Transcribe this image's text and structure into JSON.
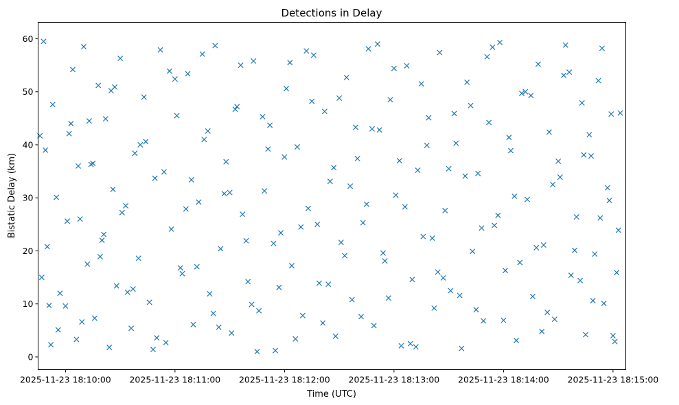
{
  "chart_data": {
    "type": "scatter",
    "title": "Detections in Delay",
    "xlabel": "Time (UTC)",
    "ylabel": "Bistatic Delay (km)",
    "x_axis_type": "datetime",
    "xlim": [
      "2025-11-23 18:09:45",
      "2025-11-23 18:15:07"
    ],
    "ylim": [
      -2.4,
      63.1
    ],
    "x_ticks": [
      "2025-11-23 18:10:00",
      "2025-11-23 18:11:00",
      "2025-11-23 18:12:00",
      "2025-11-23 18:13:00",
      "2025-11-23 18:14:00",
      "2025-11-23 18:15:00"
    ],
    "y_ticks": [
      0,
      10,
      20,
      30,
      40,
      50,
      60
    ],
    "grid": false,
    "legend": "none",
    "marker": "x",
    "marker_color": "#1f77b4",
    "series": [
      {
        "x": [
          "2025-11-23 18:09:47",
          "2025-11-23 18:09:48",
          "2025-11-23 18:09:49",
          "2025-11-23 18:09:50",
          "2025-11-23 18:09:52",
          "2025-11-23 18:09:53",
          "2025-11-23 18:09:55",
          "2025-11-23 18:09:57",
          "2025-11-23 18:10:00",
          "2025-11-23 18:10:02",
          "2025-11-23 18:10:04",
          "2025-11-23 18:10:06",
          "2025-11-23 18:10:08",
          "2025-11-23 18:10:10",
          "2025-11-23 18:10:12",
          "2025-11-23 18:10:14",
          "2025-11-23 18:10:16",
          "2025-11-23 18:10:18",
          "2025-11-23 18:10:20",
          "2025-11-23 18:10:22",
          "2025-11-23 18:10:24",
          "2025-11-23 18:10:26",
          "2025-11-23 18:10:28",
          "2025-11-23 18:10:30",
          "2025-11-23 18:10:33",
          "2025-11-23 18:10:36",
          "2025-11-23 18:10:38",
          "2025-11-23 18:10:40",
          "2025-11-23 18:10:43",
          "2025-11-23 18:10:46",
          "2025-11-23 18:10:49",
          "2025-11-23 18:10:52",
          "2025-11-23 18:10:55",
          "2025-11-23 18:10:58",
          "2025-11-23 18:11:01",
          "2025-11-23 18:11:04",
          "2025-11-23 18:11:07",
          "2025-11-23 18:11:10",
          "2025-11-23 18:11:13",
          "2025-11-23 18:11:16",
          "2025-11-23 18:11:19",
          "2025-11-23 18:11:22",
          "2025-11-23 18:11:25",
          "2025-11-23 18:11:28",
          "2025-11-23 18:11:31",
          "2025-11-23 18:11:34",
          "2025-11-23 18:11:37",
          "2025-11-23 18:11:40",
          "2025-11-23 18:11:43",
          "2025-11-23 18:11:46",
          "2025-11-23 18:11:49",
          "2025-11-23 18:11:52",
          "2025-11-23 18:11:55",
          "2025-11-23 18:11:58",
          "2025-11-23 18:12:01",
          "2025-11-23 18:12:04",
          "2025-11-23 18:12:07",
          "2025-11-23 18:12:10",
          "2025-11-23 18:12:13",
          "2025-11-23 18:12:16",
          "2025-11-23 18:12:19",
          "2025-11-23 18:12:22",
          "2025-11-23 18:12:25",
          "2025-11-23 18:12:28",
          "2025-11-23 18:12:31",
          "2025-11-23 18:12:34",
          "2025-11-23 18:12:37",
          "2025-11-23 18:12:40",
          "2025-11-23 18:12:43",
          "2025-11-23 18:12:46",
          "2025-11-23 18:12:49",
          "2025-11-23 18:12:52",
          "2025-11-23 18:12:55",
          "2025-11-23 18:12:58",
          "2025-11-23 18:13:01",
          "2025-11-23 18:13:04",
          "2025-11-23 18:13:07",
          "2025-11-23 18:13:10",
          "2025-11-23 18:13:13",
          "2025-11-23 18:13:16",
          "2025-11-23 18:13:19",
          "2025-11-23 18:13:22",
          "2025-11-23 18:13:25",
          "2025-11-23 18:13:28",
          "2025-11-23 18:13:31",
          "2025-11-23 18:13:34",
          "2025-11-23 18:13:37",
          "2025-11-23 18:13:40",
          "2025-11-23 18:13:43",
          "2025-11-23 18:13:46",
          "2025-11-23 18:13:49",
          "2025-11-23 18:13:52",
          "2025-11-23 18:13:55",
          "2025-11-23 18:13:58",
          "2025-11-23 18:14:01",
          "2025-11-23 18:14:04",
          "2025-11-23 18:14:07",
          "2025-11-23 18:14:10",
          "2025-11-23 18:14:13",
          "2025-11-23 18:14:16",
          "2025-11-23 18:14:19",
          "2025-11-23 18:14:22",
          "2025-11-23 18:14:25",
          "2025-11-23 18:14:28",
          "2025-11-23 18:14:31",
          "2025-11-23 18:14:34",
          "2025-11-23 18:14:37",
          "2025-11-23 18:14:40",
          "2025-11-23 18:14:43",
          "2025-11-23 18:14:45",
          "2025-11-23 18:14:48",
          "2025-11-23 18:14:50",
          "2025-11-23 18:14:52",
          "2025-11-23 18:14:55",
          "2025-11-23 18:14:57",
          "2025-11-23 18:14:59",
          "2025-11-23 18:15:01",
          "2025-11-23 18:15:03",
          "2025-11-23 18:09:46",
          "2025-11-23 18:09:51",
          "2025-11-23 18:09:56",
          "2025-11-23 18:10:01",
          "2025-11-23 18:10:07",
          "2025-11-23 18:10:13",
          "2025-11-23 18:10:19",
          "2025-11-23 18:10:25",
          "2025-11-23 18:10:31",
          "2025-11-23 18:10:37",
          "2025-11-23 18:10:44",
          "2025-11-23 18:10:50",
          "2025-11-23 18:10:57",
          "2025-11-23 18:11:03",
          "2025-11-23 18:11:09",
          "2025-11-23 18:11:15",
          "2025-11-23 18:11:21",
          "2025-11-23 18:11:27",
          "2025-11-23 18:11:33",
          "2025-11-23 18:11:39",
          "2025-11-23 18:11:45",
          "2025-11-23 18:11:51",
          "2025-11-23 18:11:57",
          "2025-11-23 18:12:03",
          "2025-11-23 18:12:09",
          "2025-11-23 18:12:15",
          "2025-11-23 18:12:21",
          "2025-11-23 18:12:27",
          "2025-11-23 18:12:33",
          "2025-11-23 18:12:39",
          "2025-11-23 18:12:45",
          "2025-11-23 18:12:51",
          "2025-11-23 18:12:57",
          "2025-11-23 18:13:03",
          "2025-11-23 18:13:09",
          "2025-11-23 18:13:15",
          "2025-11-23 18:13:21",
          "2025-11-23 18:13:27",
          "2025-11-23 18:13:33",
          "2025-11-23 18:13:39",
          "2025-11-23 18:13:45",
          "2025-11-23 18:13:51",
          "2025-11-23 18:13:57",
          "2025-11-23 18:14:03",
          "2025-11-23 18:14:09",
          "2025-11-23 18:14:15",
          "2025-11-23 18:14:21",
          "2025-11-23 18:14:27",
          "2025-11-23 18:14:33",
          "2025-11-23 18:14:39",
          "2025-11-23 18:14:44",
          "2025-11-23 18:14:49",
          "2025-11-23 18:14:54",
          "2025-11-23 18:14:58",
          "2025-11-23 18:15:02",
          "2025-11-23 18:10:03",
          "2025-11-23 18:10:09",
          "2025-11-23 18:10:15",
          "2025-11-23 18:10:21",
          "2025-11-23 18:10:27",
          "2025-11-23 18:10:34",
          "2025-11-23 18:10:41",
          "2025-11-23 18:10:48",
          "2025-11-23 18:10:54",
          "2025-11-23 18:11:00",
          "2025-11-23 18:11:06",
          "2025-11-23 18:11:12",
          "2025-11-23 18:11:18",
          "2025-11-23 18:11:24",
          "2025-11-23 18:11:30",
          "2025-11-23 18:11:36",
          "2025-11-23 18:11:42",
          "2025-11-23 18:11:48",
          "2025-11-23 18:11:54",
          "2025-11-23 18:12:00",
          "2025-11-23 18:12:06",
          "2025-11-23 18:12:12",
          "2025-11-23 18:12:18",
          "2025-11-23 18:12:24",
          "2025-11-23 18:12:30",
          "2025-11-23 18:12:36",
          "2025-11-23 18:12:42",
          "2025-11-23 18:12:48",
          "2025-11-23 18:12:54",
          "2025-11-23 18:13:00",
          "2025-11-23 18:13:06",
          "2025-11-23 18:13:12",
          "2025-11-23 18:13:18",
          "2025-11-23 18:13:24",
          "2025-11-23 18:13:30",
          "2025-11-23 18:13:36",
          "2025-11-23 18:13:42",
          "2025-11-23 18:13:48",
          "2025-11-23 18:13:54",
          "2025-11-23 18:14:00",
          "2025-11-23 18:14:06",
          "2025-11-23 18:14:12",
          "2025-11-23 18:14:18",
          "2025-11-23 18:14:24",
          "2025-11-23 18:14:30",
          "2025-11-23 18:14:36",
          "2025-11-23 18:14:42",
          "2025-11-23 18:14:47",
          "2025-11-23 18:14:53",
          "2025-11-23 18:15:00",
          "2025-11-23 18:15:04"
        ],
        "y": [
          15.0,
          59.5,
          39.0,
          20.8,
          2.3,
          47.6,
          30.1,
          12.0,
          9.6,
          42.1,
          54.2,
          3.3,
          26.0,
          58.5,
          17.5,
          36.3,
          7.3,
          51.2,
          22.0,
          44.9,
          1.8,
          31.6,
          13.4,
          56.3,
          28.5,
          5.4,
          38.4,
          18.6,
          49.0,
          10.3,
          33.7,
          57.9,
          2.7,
          24.1,
          45.5,
          15.7,
          53.4,
          6.1,
          29.2,
          41.0,
          11.9,
          58.7,
          20.4,
          36.8,
          4.5,
          47.2,
          26.9,
          14.2,
          55.8,
          8.7,
          31.3,
          43.7,
          1.2,
          23.4,
          50.6,
          17.2,
          39.6,
          7.8,
          28.0,
          56.9,
          13.9,
          46.3,
          33.1,
          3.9,
          21.6,
          52.7,
          10.8,
          37.4,
          25.3,
          58.1,
          5.9,
          42.8,
          18.1,
          48.5,
          30.5,
          2.1,
          54.9,
          14.6,
          35.2,
          22.7,
          45.1,
          9.2,
          57.4,
          27.6,
          12.5,
          40.3,
          1.6,
          51.8,
          19.9,
          34.6,
          6.8,
          44.2,
          24.8,
          59.3,
          16.3,
          38.9,
          3.1,
          49.7,
          29.7,
          11.4,
          55.2,
          21.1,
          42.4,
          7.1,
          33.9,
          58.8,
          15.4,
          26.4,
          47.9,
          4.2,
          37.9,
          19.4,
          52.1,
          10.1,
          31.9,
          45.8,
          2.9,
          23.9,
          41.7,
          9.7,
          5.1,
          25.6,
          36.0,
          44.5,
          18.9,
          50.2,
          27.2,
          12.8,
          40.6,
          3.6,
          53.9,
          16.8,
          33.4,
          57.1,
          8.2,
          30.8,
          46.7,
          21.9,
          1.0,
          39.2,
          13.1,
          55.5,
          24.5,
          48.2,
          6.4,
          35.7,
          19.1,
          43.3,
          28.8,
          59.0,
          11.1,
          37.0,
          2.5,
          51.5,
          22.4,
          14.9,
          45.9,
          34.1,
          8.9,
          56.6,
          26.7,
          41.4,
          17.8,
          49.3,
          4.8,
          32.5,
          53.1,
          20.1,
          38.1,
          10.6,
          58.2,
          29.5,
          15.9,
          44.0,
          6.6,
          36.5,
          23.1,
          50.9,
          12.2,
          40.0,
          1.4,
          34.9,
          52.4,
          27.9,
          17.0,
          42.6,
          5.6,
          31.0,
          55.0,
          9.9,
          45.3,
          21.4,
          37.7,
          3.4,
          57.7,
          25.0,
          13.7,
          48.8,
          32.2,
          7.6,
          43.0,
          19.6,
          54.4,
          28.3,
          1.9,
          39.9,
          16.0,
          35.5,
          11.6,
          47.4,
          24.3,
          58.4,
          6.9,
          30.3,
          50.0,
          20.6,
          8.4,
          36.9,
          53.7,
          14.4,
          41.9,
          26.2,
          4.0,
          46.0
        ]
      }
    ]
  }
}
